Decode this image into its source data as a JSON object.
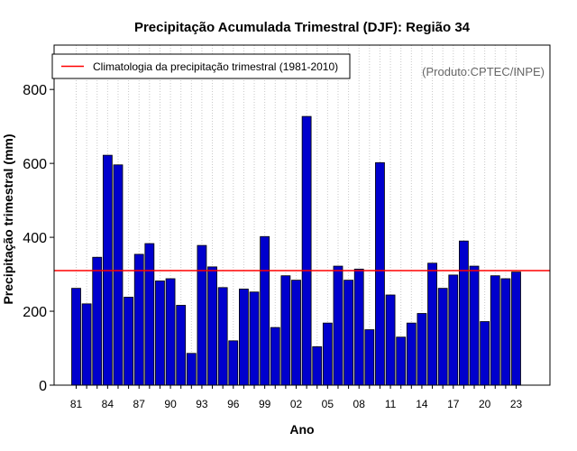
{
  "chart_data": {
    "type": "bar",
    "title": "Precipitação Acumulada Trimestral (DJF): Região 34",
    "xlabel": "Ano",
    "ylabel": "Precipitação trimestral (mm)",
    "ylim": [
      0,
      920
    ],
    "yticks": [
      0,
      200,
      400,
      600,
      800
    ],
    "categories": [
      "81",
      "82",
      "83",
      "84",
      "85",
      "86",
      "87",
      "88",
      "89",
      "90",
      "91",
      "92",
      "93",
      "94",
      "95",
      "96",
      "97",
      "98",
      "99",
      "00",
      "01",
      "02",
      "03",
      "04",
      "05",
      "06",
      "07",
      "08",
      "09",
      "10",
      "11",
      "12",
      "13",
      "14",
      "15",
      "16",
      "17",
      "18",
      "19",
      "20",
      "21",
      "22",
      "23"
    ],
    "xtick_labels": [
      "81",
      "84",
      "87",
      "90",
      "93",
      "96",
      "99",
      "02",
      "05",
      "08",
      "11",
      "14",
      "17",
      "20",
      "23"
    ],
    "values": [
      262,
      220,
      346,
      622,
      596,
      238,
      354,
      383,
      282,
      288,
      216,
      86,
      378,
      320,
      264,
      120,
      260,
      252,
      402,
      156,
      296,
      284,
      727,
      104,
      168,
      322,
      284,
      314,
      150,
      602,
      244,
      130,
      168,
      194,
      330,
      262,
      298,
      390,
      322,
      172,
      296,
      288,
      306
    ],
    "climatology": 310,
    "bar_color": "#0000CD",
    "climatology_color": "#FF0000",
    "grid": "vertical-dotted",
    "legend": {
      "label": "Climatologia da precipitação trimestral (1981-2010)",
      "position": "top-left"
    },
    "credit": "(Produto:CPTEC/INPE)"
  }
}
